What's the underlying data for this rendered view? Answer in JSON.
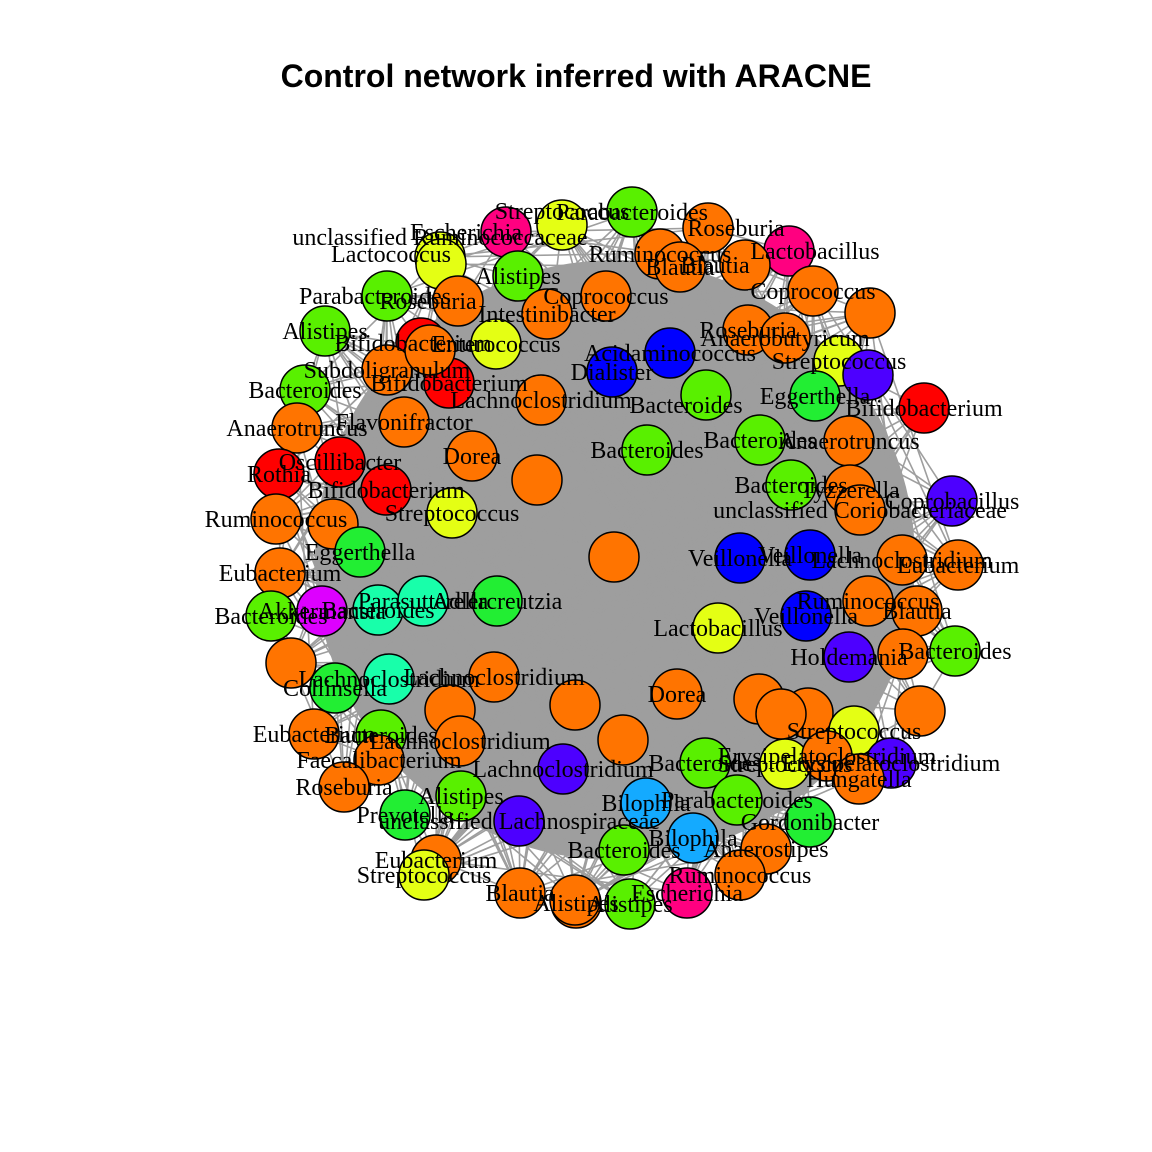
{
  "title": "Control network inferred with ARACNE",
  "edge_color": "#9e9e9e",
  "node_stroke": "#000000",
  "palette": {
    "orange": "#ff7400",
    "green": "#59f000",
    "bright_green": "#22ee33",
    "yellow": "#e4ff14",
    "red": "#ff0000",
    "blue": "#0000ff",
    "indigo": "#4d00ff",
    "magenta": "#ff0080",
    "violet": "#dd00ff",
    "sky": "#14aaff",
    "teal": "#18ffaa"
  },
  "nodes": [
    {
      "c": "green",
      "l": "Parabacteroides"
    },
    {
      "c": "yellow",
      "l": "Streptococcus"
    },
    {
      "c": "magenta",
      "l": "Escherichia"
    },
    {
      "c": "orange",
      "l": "Roseburia"
    },
    {
      "c": "magenta",
      "l": "Lactobacillus"
    },
    {
      "c": "orange",
      "l": "Ruminococcus"
    },
    {
      "c": "orange",
      "l": "Blautia"
    },
    {
      "c": "yellow",
      "l": "unclassified Ruminococcaceae"
    },
    {
      "c": "yellow",
      "l": "Lactococcus"
    },
    {
      "c": "green",
      "l": "Alistipes"
    },
    {
      "c": "orange",
      "l": "Blautia"
    },
    {
      "c": "orange",
      "l": "Coprococcus"
    },
    {
      "c": "orange",
      "l": "Coprococcus"
    },
    {
      "c": "green",
      "l": "Parabacteroides"
    },
    {
      "c": "orange",
      "l": "Roseburia"
    },
    {
      "c": "orange",
      "l": "Intestinibacter"
    },
    {
      "c": "orange",
      "l": "Roseburia"
    },
    {
      "c": "orange",
      "l": "Anaerobutyricum"
    },
    {
      "c": "green",
      "l": "Alistipes"
    },
    {
      "c": "red",
      "l": "Bifidobacterium"
    },
    {
      "c": "yellow",
      "l": "Enterococcus"
    },
    {
      "c": "blue",
      "l": "Acidaminococcus"
    },
    {
      "c": "yellow",
      "l": "Streptococcus"
    },
    {
      "c": "indigo",
      "l": ""
    },
    {
      "c": "orange",
      "l": "Subdoligranulum"
    },
    {
      "c": "red",
      "l": "Bifidobacterium"
    },
    {
      "c": "blue",
      "l": "Dialister"
    },
    {
      "c": "green",
      "l": "Bacteroides"
    },
    {
      "c": "bright_green",
      "l": "Eggerthella"
    },
    {
      "c": "red",
      "l": "Bifidobacterium"
    },
    {
      "c": "green",
      "l": "Bacteroides"
    },
    {
      "c": "orange",
      "l": "Lachnoclostridium"
    },
    {
      "c": "orange",
      "l": "Anaerotruncus"
    },
    {
      "c": "orange",
      "l": "Flavonifractor"
    },
    {
      "c": "green",
      "l": "Bacteroides"
    },
    {
      "c": "orange",
      "l": ""
    },
    {
      "c": "orange",
      "l": "Anaerotruncus"
    },
    {
      "c": "green",
      "l": "Bacteroides"
    },
    {
      "c": "orange",
      "l": "Dorea"
    },
    {
      "c": "red",
      "l": "Oscillibacter"
    },
    {
      "c": "red",
      "l": "Rothia"
    },
    {
      "c": "orange",
      "l": ""
    },
    {
      "c": "green",
      "l": "Bacteroides"
    },
    {
      "c": "orange",
      "l": "Tyzzerella"
    },
    {
      "c": "indigo",
      "l": "Coprobacillus"
    },
    {
      "c": "red",
      "l": "Bifidobacterium"
    },
    {
      "c": "yellow",
      "l": "Streptococcus"
    },
    {
      "c": "orange",
      "l": "unclassified Coriobacteriaceae"
    },
    {
      "c": "orange",
      "l": "Ruminococcus"
    },
    {
      "c": "orange",
      "l": ""
    },
    {
      "c": "bright_green",
      "l": "Eggerthella"
    },
    {
      "c": "orange",
      "l": ""
    },
    {
      "c": "blue",
      "l": "Veillonella"
    },
    {
      "c": "blue",
      "l": "Veillonella"
    },
    {
      "c": "orange",
      "l": "Lachnoclostridium"
    },
    {
      "c": "orange",
      "l": "Eubacterium"
    },
    {
      "c": "orange",
      "l": "Eubacterium"
    },
    {
      "c": "green",
      "l": "Bacteroides"
    },
    {
      "c": "violet",
      "l": "Akkermansia"
    },
    {
      "c": "teal",
      "l": "Bacteroides"
    },
    {
      "c": "bright_green",
      "l": "Adlercreutzia"
    },
    {
      "c": "teal",
      "l": "Parasutterella"
    },
    {
      "c": "yellow",
      "l": "Lactobacillus"
    },
    {
      "c": "blue",
      "l": "Veillonella"
    },
    {
      "c": "orange",
      "l": "Ruminococcus"
    },
    {
      "c": "orange",
      "l": "Blautia"
    },
    {
      "c": "green",
      "l": "Bacteroides"
    },
    {
      "c": "orange",
      "l": ""
    },
    {
      "c": "bright_green",
      "l": "Collinsella"
    },
    {
      "c": "teal",
      "l": "Lachnoclostridium"
    },
    {
      "c": "orange",
      "l": "Lachnoclostridium"
    },
    {
      "c": "indigo",
      "l": "Holdemania"
    },
    {
      "c": "orange",
      "l": "Dorea"
    },
    {
      "c": "orange",
      "l": ""
    },
    {
      "c": "orange",
      "l": ""
    },
    {
      "c": "orange",
      "l": ""
    },
    {
      "c": "orange",
      "l": ""
    },
    {
      "c": "orange",
      "l": ""
    },
    {
      "c": "orange",
      "l": "Eubacterium"
    },
    {
      "c": "green",
      "l": "Bacteroides"
    },
    {
      "c": "yellow",
      "l": "Streptococcus"
    },
    {
      "c": "orange",
      "l": "Lachnoclostridium"
    },
    {
      "c": "indigo",
      "l": "Lachnoclostridium"
    },
    {
      "c": "green",
      "l": "Bacteroides"
    },
    {
      "c": "yellow",
      "l": "Streptococcus"
    },
    {
      "c": "orange",
      "l": "Erysipelatoclostridium"
    },
    {
      "c": "orange",
      "l": "Faecalibacterium"
    },
    {
      "c": "indigo",
      "l": "Erysipelatoclostridium"
    },
    {
      "c": "orange",
      "l": "Roseburia"
    },
    {
      "c": "green",
      "l": "Alistipes"
    },
    {
      "c": "orange",
      "l": "Hungatella"
    },
    {
      "c": "sky",
      "l": "Bilophila"
    },
    {
      "c": "green",
      "l": "Parabacteroides"
    },
    {
      "c": "bright_green",
      "l": "Prevotella"
    },
    {
      "c": "indigo",
      "l": "unclassified Lachnospiraceae"
    },
    {
      "c": "sky",
      "l": "Bilophila"
    },
    {
      "c": "bright_green",
      "l": "Gordonibacter"
    },
    {
      "c": "orange",
      "l": "Eubacterium"
    },
    {
      "c": "green",
      "l": "Bacteroides"
    },
    {
      "c": "orange",
      "l": "Anaerostipes"
    },
    {
      "c": "yellow",
      "l": "Streptococcus"
    },
    {
      "c": "orange",
      "l": "Ruminococcus"
    },
    {
      "c": "magenta",
      "l": "Escherichia"
    },
    {
      "c": "orange",
      "l": "Blautia"
    },
    {
      "c": "orange",
      "l": "Alistipes"
    },
    {
      "c": "green",
      "l": "Alistipes"
    },
    {
      "c": "orange",
      "l": ""
    },
    {
      "c": "orange",
      "l": ""
    },
    {
      "c": "orange",
      "l": ""
    },
    {
      "c": "orange",
      "l": ""
    },
    {
      "c": "orange",
      "l": ""
    }
  ]
}
